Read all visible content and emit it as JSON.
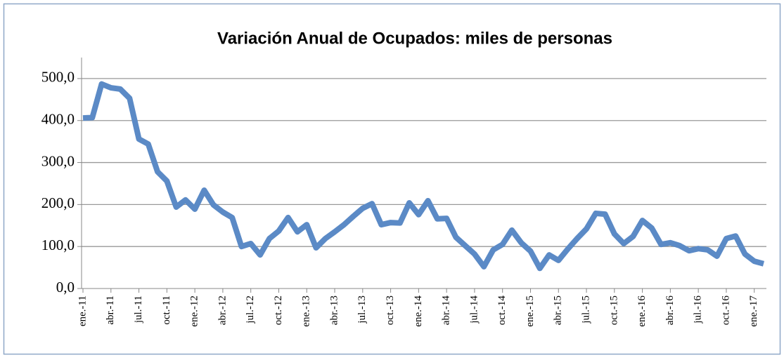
{
  "chart_data": {
    "type": "line",
    "title": "Variación Anual de Ocupados: miles de personas",
    "categories": [
      "ene.-11",
      null,
      null,
      "abr.-11",
      null,
      null,
      "jul.-11",
      null,
      null,
      "oct.-11",
      null,
      null,
      "ene.-12",
      null,
      null,
      "abr.-12",
      null,
      null,
      "jul.-12",
      null,
      null,
      "oct.-12",
      null,
      null,
      "ene.-13",
      null,
      null,
      "abr.-13",
      null,
      null,
      "jul.-13",
      null,
      null,
      "oct.-13",
      null,
      null,
      "ene.-14",
      null,
      null,
      "abr.-14",
      null,
      null,
      "jul.-14",
      null,
      null,
      "oct.-14",
      null,
      null,
      "ene.-15",
      null,
      null,
      "abr.-15",
      null,
      null,
      "jul.-15",
      null,
      null,
      "oct.-15",
      null,
      null,
      "ene.-16",
      null,
      null,
      "abr.-16",
      null,
      null,
      "jul.-16",
      null,
      null,
      "oct.-16",
      null,
      null,
      "ene.-17",
      null
    ],
    "series": [
      {
        "name": "Variación Anual de Ocupados",
        "color": "#5b8ac6",
        "values": [
          406,
          407,
          487,
          478,
          475,
          453,
          356,
          344,
          278,
          256,
          194,
          211,
          189,
          234,
          199,
          182,
          169,
          100,
          107,
          80,
          119,
          137,
          169,
          135,
          152,
          97,
          119,
          135,
          152,
          172,
          191,
          202,
          152,
          157,
          156,
          204,
          176,
          209,
          166,
          167,
          122,
          102,
          82,
          52,
          92,
          105,
          139,
          109,
          89,
          48,
          80,
          67,
          94,
          119,
          142,
          179,
          177,
          130,
          107,
          124,
          162,
          144,
          105,
          109,
          102,
          90,
          95,
          92,
          77,
          119,
          125,
          82,
          65,
          59
        ]
      }
    ],
    "ylim": [
      0,
      550
    ],
    "yticks": [
      {
        "value": 0,
        "label": "0,0"
      },
      {
        "value": 100,
        "label": "100,0"
      },
      {
        "value": 200,
        "label": "200,0"
      },
      {
        "value": 300,
        "label": "300,0"
      },
      {
        "value": 400,
        "label": "400,0"
      },
      {
        "value": 500,
        "label": "500,0"
      }
    ],
    "grid": true
  }
}
